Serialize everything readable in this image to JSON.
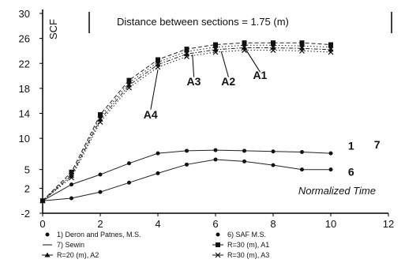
{
  "chart_data": {
    "type": "line",
    "title": "Distance between sections = 1.75 (m)",
    "ylabel": "SCF",
    "xlabel": "Normalized Time",
    "xlim": [
      0,
      12
    ],
    "ylim": [
      -2,
      30
    ],
    "x_ticks": [
      "0",
      "2",
      "4",
      "6",
      "8",
      "10",
      "12"
    ],
    "y_ticks": [
      "-2",
      "2",
      "5",
      "10",
      "14",
      "18",
      "22",
      "26",
      "30"
    ],
    "grid": false,
    "legend_position": "bottom",
    "series": [
      {
        "name": "1) Deron and Patnes, M.S.",
        "marker": "circle",
        "dash": "solid",
        "x": [
          0,
          1,
          2,
          3,
          4,
          5,
          6,
          7,
          8,
          9,
          10
        ],
        "y": [
          0,
          2.6,
          4.2,
          6.0,
          7.6,
          8.0,
          8.1,
          8.0,
          7.9,
          7.8,
          7.6
        ]
      },
      {
        "name": "6) SAF M.S.",
        "marker": "circle",
        "dash": "solid",
        "x": [
          0,
          1,
          2,
          3,
          4,
          5,
          6,
          7,
          8,
          9,
          10
        ],
        "y": [
          0,
          0.4,
          1.4,
          2.9,
          4.4,
          5.8,
          6.6,
          6.3,
          5.7,
          5.0,
          5.0
        ]
      },
      {
        "name": "A1",
        "marker": "square",
        "dash": "dash",
        "x": [
          0,
          1,
          2,
          3,
          4,
          5,
          6,
          7,
          8,
          9,
          10
        ],
        "y": [
          0,
          4.6,
          13.8,
          19.3,
          22.6,
          24.3,
          25.0,
          25.3,
          25.3,
          25.3,
          25.0
        ]
      },
      {
        "name": "A2",
        "marker": "diamond",
        "dash": "dot",
        "x": [
          0,
          1,
          2,
          3,
          4,
          5,
          6,
          7,
          8,
          9,
          10
        ],
        "y": [
          0,
          4.3,
          13.4,
          18.9,
          22.2,
          23.9,
          24.6,
          24.9,
          24.9,
          24.8,
          24.6
        ]
      },
      {
        "name": "A3",
        "marker": "triangle",
        "dash": "dashdot",
        "x": [
          0,
          1,
          2,
          3,
          4,
          5,
          6,
          7,
          8,
          9,
          10
        ],
        "y": [
          0,
          4.0,
          13.0,
          18.5,
          21.8,
          23.5,
          24.2,
          24.5,
          24.5,
          24.4,
          24.2
        ]
      },
      {
        "name": "A4",
        "marker": "x",
        "dash": "dot",
        "x": [
          0,
          1,
          2,
          3,
          4,
          5,
          6,
          7,
          8,
          9,
          10
        ],
        "y": [
          0,
          3.7,
          12.6,
          18.1,
          21.4,
          23.1,
          23.8,
          24.1,
          24.1,
          24.0,
          23.8
        ]
      }
    ],
    "annotations": [
      {
        "text": "A1",
        "x": 7.3,
        "y": 19.5
      },
      {
        "text": "A2",
        "x": 6.2,
        "y": 18.5
      },
      {
        "text": "A3",
        "x": 5.0,
        "y": 18.5
      },
      {
        "text": "A4",
        "x": 3.5,
        "y": 13.2
      },
      {
        "text": "1",
        "x": 10.6,
        "y": 8.2
      },
      {
        "text": "7",
        "x": 11.5,
        "y": 8.4
      },
      {
        "text": "6",
        "x": 10.6,
        "y": 4.0
      }
    ],
    "legend_lines": [
      "1) Deron and Patnes, M.S.",
      "6) SAF M.S.",
      "7) Sewin",
      "R=30 (m), A1",
      "R=20 (m), A2",
      "R=30 (m), A3"
    ]
  }
}
